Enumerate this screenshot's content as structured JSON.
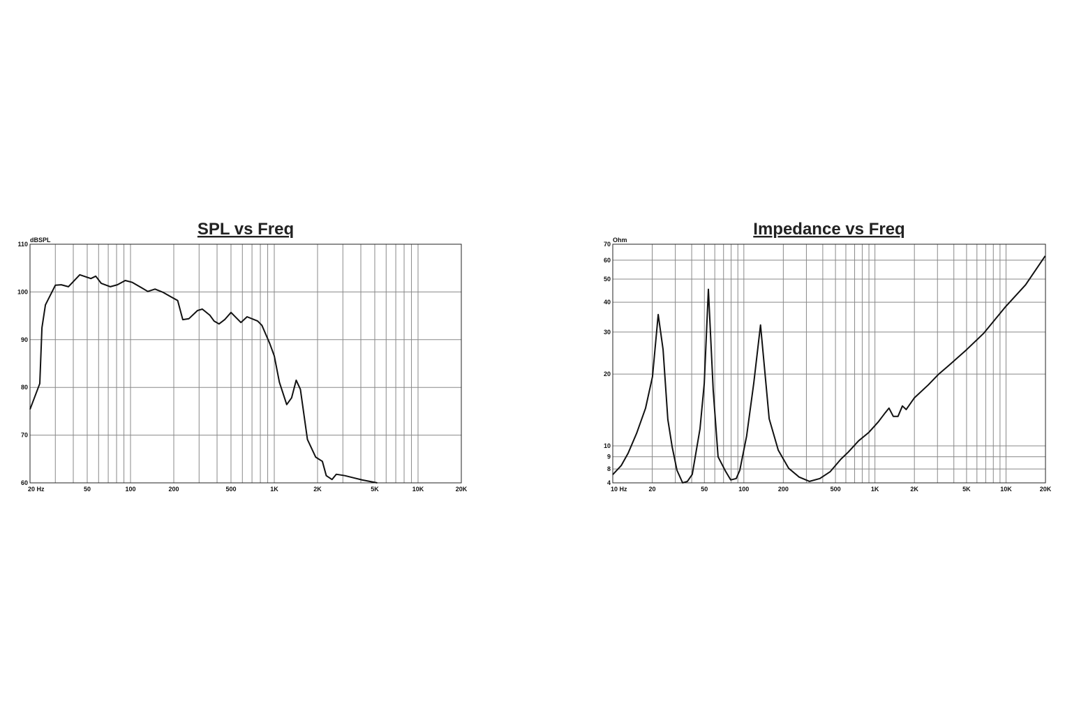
{
  "chart_data": [
    {
      "type": "line",
      "title": "SPL vs Freq",
      "y_label": "dBSPL",
      "color": "#111111",
      "log_x": true,
      "log_y": false,
      "grid": true,
      "x": [
        20,
        23.4,
        24.2,
        25.6,
        30,
        33,
        37,
        44.4,
        53,
        57.3,
        62.6,
        72.4,
        81.1,
        92,
        103,
        119,
        132,
        148,
        169,
        193,
        213,
        231,
        255,
        292,
        316,
        357,
        381,
        413,
        452,
        500,
        586,
        647,
        766,
        821,
        930,
        1000,
        1085,
        1220,
        1320,
        1420,
        1520,
        1700,
        1940,
        2160,
        2300,
        2520,
        2700,
        3100,
        4100,
        5200
      ],
      "values": [
        75.4,
        80.8,
        92.5,
        97.3,
        101.4,
        101.5,
        101.1,
        103.6,
        102.8,
        103.3,
        101.8,
        101.1,
        101.5,
        102.4,
        102,
        100.9,
        100.1,
        100.6,
        99.9,
        98.9,
        98.2,
        94.2,
        94.4,
        96.1,
        96.4,
        95.1,
        93.9,
        93.3,
        94.2,
        95.7,
        93.6,
        94.8,
        93.9,
        93,
        89.2,
        86.6,
        81.1,
        76.4,
        77.8,
        81.5,
        79.6,
        69.1,
        65.4,
        64.5,
        61.5,
        60.7,
        61.8,
        61.5,
        60.6,
        60
      ],
      "xlim": [
        20,
        20000
      ],
      "xticks": [
        {
          "value": 20,
          "label": "20  Hz"
        },
        50,
        100,
        200,
        500,
        {
          "value": 1000,
          "label": "1K"
        },
        {
          "value": 2000,
          "label": "2K"
        },
        {
          "value": 5000,
          "label": "5K"
        },
        {
          "value": 10000,
          "label": "10K"
        },
        {
          "value": 20000,
          "label": "20K"
        }
      ],
      "xgrid": [
        30,
        40,
        60,
        70,
        80,
        90,
        300,
        400,
        600,
        700,
        800,
        900,
        3000,
        4000,
        6000,
        7000,
        8000,
        9000
      ],
      "ylim": [
        60,
        110
      ],
      "yticks": [
        60,
        70,
        80,
        90,
        100,
        110
      ]
    },
    {
      "type": "line",
      "title": "Impedance vs Freq",
      "y_label": "Ohm",
      "color": "#111111",
      "log_x": true,
      "log_y": true,
      "grid": true,
      "x": [
        10,
        11.6,
        13.1,
        15.2,
        17.8,
        20.1,
        22.2,
        24.2,
        26.3,
        28.4,
        30.9,
        34.1,
        37.1,
        40.4,
        46.3,
        49.9,
        53.6,
        58.4,
        63.6,
        72.8,
        79.4,
        87.5,
        93.1,
        105,
        119,
        134,
        144,
        156,
        183,
        220,
        264,
        317,
        380,
        456,
        550,
        624,
        750,
        900,
        1060,
        1190,
        1280,
        1380,
        1500,
        1620,
        1730,
        2000,
        2550,
        3070,
        3690,
        5000,
        6780,
        9800,
        14100,
        19900
      ],
      "values": [
        7.58,
        8.27,
        9.32,
        11.3,
        14.4,
        19.5,
        35.5,
        25.3,
        12.9,
        9.9,
        7.9,
        7.0,
        7.1,
        7.6,
        11.8,
        18.3,
        45.3,
        17.1,
        9.0,
        7.8,
        7.2,
        7.3,
        7.9,
        11.0,
        18.3,
        32.1,
        20.9,
        13.0,
        9.6,
        8.05,
        7.4,
        7.1,
        7.3,
        7.8,
        8.8,
        9.4,
        10.5,
        11.4,
        12.6,
        13.7,
        14.4,
        13.3,
        13.3,
        14.7,
        14.2,
        15.9,
        18.0,
        20.0,
        21.8,
        25.3,
        29.7,
        38.0,
        47.3,
        62.5
      ],
      "xlim": [
        10,
        20000
      ],
      "xticks": [
        {
          "value": 10,
          "label": "10  Hz"
        },
        20,
        50,
        100,
        200,
        500,
        {
          "value": 1000,
          "label": "1K"
        },
        {
          "value": 2000,
          "label": "2K"
        },
        {
          "value": 5000,
          "label": "5K"
        },
        {
          "value": 10000,
          "label": "10K"
        },
        {
          "value": 20000,
          "label": "20K"
        }
      ],
      "xgrid": [
        30,
        40,
        60,
        70,
        80,
        90,
        300,
        400,
        600,
        700,
        800,
        900,
        3000,
        4000,
        6000,
        7000,
        8000,
        9000
      ],
      "ylim": [
        7,
        70
      ],
      "yticks": [
        8,
        9,
        10,
        20,
        30,
        40,
        50,
        60,
        70
      ],
      "y_bottom_label": "4"
    }
  ]
}
